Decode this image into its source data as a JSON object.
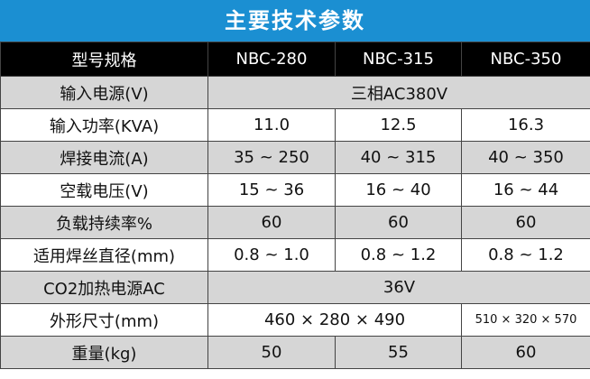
{
  "title": "主要技术参数",
  "table": {
    "header": [
      "型号规格",
      "NBC-280",
      "NBC-315",
      "NBC-350"
    ],
    "rows": [
      [
        "输入电源(V)",
        "三相AC380V"
      ],
      [
        "输入功率(KVA)",
        "11.0",
        "12.5",
        "16.3"
      ],
      [
        "焊接电流(A)",
        "35 ~ 250",
        "40 ~ 315",
        "40 ~ 350"
      ],
      [
        "空载电压(V)",
        "15 ~ 36",
        "16 ~ 40",
        "16 ~ 44"
      ],
      [
        "负载持续率%",
        "60",
        "60",
        "60"
      ],
      [
        "适用焊丝直径(mm)",
        "0.8 ~ 1.0",
        "0.8 ~ 1.2",
        "0.8 ~ 1.2"
      ],
      [
        "CO2加热电源AC",
        "36V"
      ],
      [
        "外形尺寸(mm)",
        "460 × 280 × 490",
        "510 × 320 × 570"
      ],
      [
        "重量(kg)",
        "50",
        "55",
        "60"
      ]
    ]
  }
}
